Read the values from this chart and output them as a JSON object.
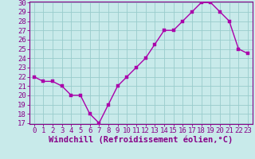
{
  "x": [
    0,
    1,
    2,
    3,
    4,
    5,
    6,
    7,
    8,
    9,
    10,
    11,
    12,
    13,
    14,
    15,
    16,
    17,
    18,
    19,
    20,
    21,
    22,
    23
  ],
  "y": [
    22,
    21.5,
    21.5,
    21,
    20,
    20,
    18,
    17,
    19,
    21,
    22,
    23,
    24,
    25.5,
    27,
    27,
    28,
    29,
    30,
    30,
    29,
    28,
    25,
    24.5
  ],
  "line_color": "#aa00aa",
  "marker_color": "#aa00aa",
  "bg_color": "#c8eaea",
  "grid_color": "#99cccc",
  "xlabel": "Windchill (Refroidissement éolien,°C)",
  "ylim_min": 17,
  "ylim_max": 30,
  "xlim_min": -0.5,
  "xlim_max": 23.5,
  "yticks": [
    17,
    18,
    19,
    20,
    21,
    22,
    23,
    24,
    25,
    26,
    27,
    28,
    29,
    30
  ],
  "xticks": [
    0,
    1,
    2,
    3,
    4,
    5,
    6,
    7,
    8,
    9,
    10,
    11,
    12,
    13,
    14,
    15,
    16,
    17,
    18,
    19,
    20,
    21,
    22,
    23
  ],
  "tick_color": "#880088",
  "spine_color": "#880088",
  "xlabel_color": "#880088",
  "xlabel_fontsize": 7.5,
  "tick_fontsize": 6.5,
  "marker_size": 2.5,
  "line_width": 1.0
}
